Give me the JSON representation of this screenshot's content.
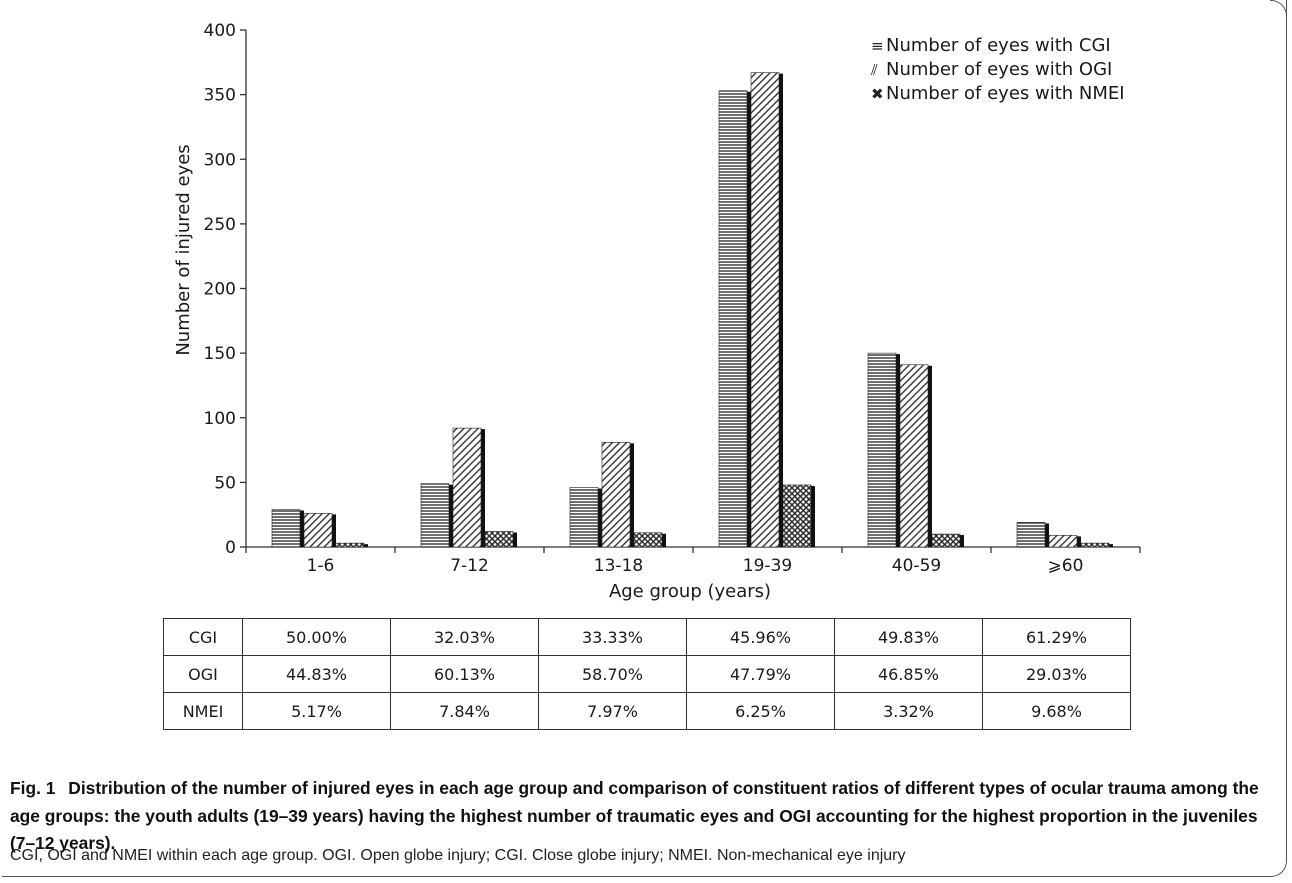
{
  "chart_data": {
    "type": "bar",
    "ylabel": "Number of injured eyes",
    "xlabel": "Age group (years)",
    "ylim": [
      0,
      400
    ],
    "yticks": [
      "0",
      "50",
      "100",
      "150",
      "200",
      "250",
      "300",
      "350",
      "400"
    ],
    "categories": [
      "1-6",
      "7-12",
      "13-18",
      "19-39",
      "40-59",
      "⩾60"
    ],
    "series": [
      {
        "name": "Number of eyes with CGI",
        "values": [
          29,
          49,
          46,
          353,
          150,
          19
        ],
        "pattern": "horizontal"
      },
      {
        "name": "Number of eyes with OGI",
        "values": [
          26,
          92,
          81,
          367,
          141,
          9
        ],
        "pattern": "diagonal"
      },
      {
        "name": "Number of eyes with NMEI",
        "values": [
          3,
          12,
          11,
          48,
          10,
          3
        ],
        "pattern": "crosshatch"
      }
    ],
    "legend_position": "top-right",
    "legend_markers": [
      "≡",
      "⫽",
      "✖"
    ],
    "grid": false
  },
  "ratio_table": {
    "rows": [
      {
        "label": "CGI",
        "values": [
          "50.00%",
          "32.03%",
          "33.33%",
          "45.96%",
          "49.83%",
          "61.29%"
        ]
      },
      {
        "label": "OGI",
        "values": [
          "44.83%",
          "60.13%",
          "58.70%",
          "47.79%",
          "46.85%",
          "29.03%"
        ]
      },
      {
        "label": "NMEI",
        "values": [
          "5.17%",
          "7.84%",
          "7.97%",
          "6.25%",
          "3.32%",
          "9.68%"
        ]
      }
    ]
  },
  "caption": {
    "fig_label": "Fig. 1",
    "text": "Distribution of the number of injured eyes in each age group and comparison of constituent ratios of different types of ocular trauma among the age groups: the youth adults (19–39 years) having the highest number of traumatic eyes and OGI accounting for the highest proportion in the juveniles (7–12 years).",
    "note": "CGI, OGI and NMEI within each age group. OGI. Open globe injury; CGI. Close globe injury; NMEI. Non-mechanical eye injury"
  },
  "colors": {
    "bar_stroke": "#222222",
    "shadow": "#111111",
    "axis": "#333333"
  }
}
